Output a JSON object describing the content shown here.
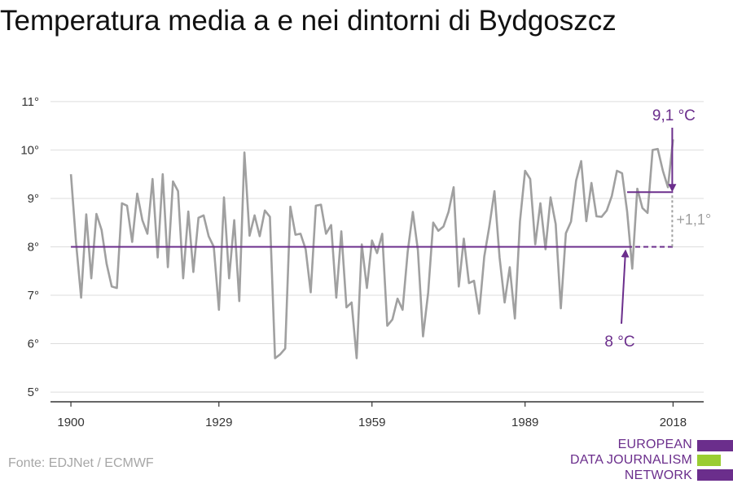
{
  "title": "Temperatura media a e nei dintorni di Bydgoszcz",
  "source": "Fonte: EDJNet / ECMWF",
  "logo": {
    "lines": [
      "EUROPEAN",
      "DATA JOURNALISM",
      "NETWORK"
    ],
    "text_color": "#6b2e8c",
    "bar_colors": [
      "#6b2e8c",
      "#9acd32",
      "#6b2e8c"
    ]
  },
  "colors": {
    "series": "#a0a0a0",
    "average": "#6b2e8c",
    "difference": "#a0a0a0",
    "axis": "#333333",
    "grid": "#dddddd"
  },
  "chart_data": {
    "type": "line",
    "title": "Temperatura media a e nei dintorni di Bydgoszcz",
    "xlabel": "",
    "ylabel": "",
    "x_ticks": [
      1900,
      1929,
      1959,
      1989,
      2018
    ],
    "y_ticks": [
      5,
      6,
      7,
      8,
      9,
      10,
      11
    ],
    "y_tick_labels": [
      "5°",
      "6°",
      "7°",
      "8°",
      "9°",
      "10°",
      "11°"
    ],
    "xlim": [
      1896,
      2024
    ],
    "ylim": [
      4.8,
      11.3
    ],
    "grid": true,
    "x": [
      1900,
      1901,
      1902,
      1903,
      1904,
      1905,
      1906,
      1907,
      1908,
      1909,
      1910,
      1911,
      1912,
      1913,
      1914,
      1915,
      1916,
      1917,
      1918,
      1919,
      1920,
      1921,
      1922,
      1923,
      1924,
      1925,
      1926,
      1927,
      1928,
      1929,
      1930,
      1931,
      1932,
      1933,
      1934,
      1935,
      1936,
      1937,
      1938,
      1939,
      1940,
      1941,
      1942,
      1943,
      1944,
      1945,
      1946,
      1947,
      1948,
      1949,
      1950,
      1951,
      1952,
      1953,
      1954,
      1955,
      1956,
      1957,
      1958,
      1959,
      1960,
      1961,
      1962,
      1963,
      1964,
      1965,
      1966,
      1967,
      1968,
      1969,
      1970,
      1971,
      1972,
      1973,
      1974,
      1975,
      1976,
      1977,
      1978,
      1979,
      1980,
      1981,
      1982,
      1983,
      1984,
      1985,
      1986,
      1987,
      1988,
      1989,
      1990,
      1991,
      1992,
      1993,
      1994,
      1995,
      1996,
      1997,
      1998,
      1999,
      2000,
      2001,
      2002,
      2003,
      2004,
      2005,
      2006,
      2007,
      2008,
      2009,
      2010,
      2011,
      2012,
      2013,
      2014,
      2015,
      2016,
      2017,
      2018
    ],
    "series": [
      {
        "values": [
          9.5,
          8.1,
          6.95,
          8.67,
          7.35,
          8.68,
          8.35,
          7.65,
          7.18,
          7.15,
          8.9,
          8.85,
          8.1,
          9.1,
          8.55,
          8.27,
          9.4,
          7.78,
          9.5,
          7.58,
          9.35,
          9.15,
          7.35,
          8.73,
          7.48,
          8.6,
          8.65,
          8.22,
          8.0,
          6.7,
          9.02,
          7.35,
          8.55,
          6.88,
          9.95,
          8.23,
          8.65,
          8.22,
          8.75,
          8.62,
          5.7,
          5.78,
          5.9,
          8.83,
          8.25,
          8.27,
          7.95,
          7.06,
          8.85,
          8.87,
          8.27,
          8.45,
          6.95,
          8.32,
          6.75,
          6.85,
          5.7,
          8.05,
          7.15,
          8.13,
          7.87,
          8.27,
          6.37,
          6.5,
          6.93,
          6.7,
          7.9,
          8.72,
          7.93,
          6.15,
          7.05,
          8.5,
          8.33,
          8.42,
          8.72,
          9.23,
          7.18,
          8.17,
          7.25,
          7.3,
          6.62,
          7.8,
          8.42,
          9.15,
          7.78,
          6.85,
          7.58,
          6.52,
          8.52,
          9.57,
          9.4,
          8.05,
          8.9,
          7.95,
          9.02,
          8.47,
          6.73,
          8.28,
          8.52,
          9.37,
          9.77,
          8.53,
          9.32,
          8.63,
          8.62,
          8.75,
          9.05,
          9.57,
          9.52,
          8.73,
          7.55,
          9.2,
          8.8,
          8.7,
          10.0,
          10.02,
          9.57,
          9.23,
          10.22
        ]
      }
    ],
    "reference_lines": [
      {
        "label": "8 °C",
        "value": 8.0,
        "from": 1900,
        "to": 2018,
        "dashed_from": 2009
      },
      {
        "label": "9,1 °C",
        "value": 9.13,
        "from": 2009,
        "to": 2018,
        "dashed_until": 2018
      }
    ],
    "difference_label": "+1,1°"
  }
}
